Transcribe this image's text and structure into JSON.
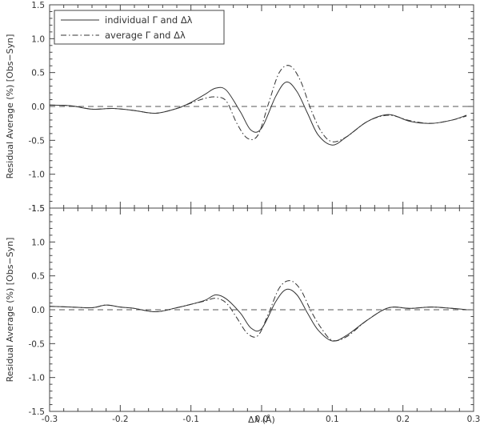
{
  "chart_data": [
    {
      "type": "line",
      "panel": "top",
      "ylabel": "Residual Average (%) [Obs−Syn]",
      "ylim": [
        -1.5,
        1.5
      ],
      "xlim": [
        -0.3,
        0.3
      ],
      "yticks": [
        "1.5",
        "1.0",
        "0.5",
        "0.0",
        "-0.5",
        "-1.0",
        "-1.5"
      ],
      "reference_line": {
        "y": 0.0,
        "style": "dashed"
      },
      "legend": {
        "placement": "top-left",
        "entries": [
          {
            "name": "individual Γ and Δλ",
            "style": "solid"
          },
          {
            "name": "average Γ and Δλ",
            "style": "dash-dot"
          }
        ]
      },
      "series": [
        {
          "name": "individual Γ and Δλ",
          "style": "solid",
          "x": [
            -0.3,
            -0.27,
            -0.24,
            -0.21,
            -0.18,
            -0.15,
            -0.12,
            -0.1,
            -0.08,
            -0.065,
            -0.05,
            -0.03,
            -0.015,
            0.0,
            0.02,
            0.035,
            0.05,
            0.065,
            0.08,
            0.1,
            0.12,
            0.15,
            0.18,
            0.21,
            0.24,
            0.27,
            0.29
          ],
          "y": [
            0.02,
            0.01,
            -0.04,
            -0.03,
            -0.06,
            -0.1,
            -0.03,
            0.06,
            0.18,
            0.27,
            0.24,
            -0.08,
            -0.35,
            -0.32,
            0.15,
            0.36,
            0.22,
            -0.1,
            -0.42,
            -0.57,
            -0.45,
            -0.22,
            -0.12,
            -0.22,
            -0.25,
            -0.2,
            -0.13
          ]
        },
        {
          "name": "average Γ and Δλ",
          "style": "dash-dot",
          "x": [
            -0.3,
            -0.27,
            -0.24,
            -0.21,
            -0.18,
            -0.15,
            -0.12,
            -0.1,
            -0.08,
            -0.065,
            -0.05,
            -0.035,
            -0.02,
            -0.005,
            0.01,
            0.025,
            0.04,
            0.055,
            0.07,
            0.085,
            0.1,
            0.12,
            0.15,
            0.18,
            0.21,
            0.24,
            0.27,
            0.29
          ],
          "y": [
            0.02,
            0.01,
            -0.04,
            -0.03,
            -0.06,
            -0.1,
            -0.03,
            0.05,
            0.12,
            0.14,
            0.08,
            -0.25,
            -0.47,
            -0.42,
            0.05,
            0.5,
            0.6,
            0.38,
            -0.05,
            -0.38,
            -0.52,
            -0.45,
            -0.22,
            -0.13,
            -0.21,
            -0.25,
            -0.2,
            -0.14
          ]
        }
      ]
    },
    {
      "type": "line",
      "panel": "bottom",
      "xlabel": "Δλ (Å)",
      "ylabel": "Residual Average (%) [Obs−Syn]",
      "ylim": [
        -1.5,
        1.5
      ],
      "xlim": [
        -0.3,
        0.3
      ],
      "yticks": [
        "1.5",
        "1.0",
        "0.5",
        "0.0",
        "-0.5",
        "-1.0",
        "-1.5"
      ],
      "xticks": [
        "-0.3",
        "-0.2",
        "-0.1",
        "0.0",
        "0.1",
        "0.2",
        "0.3"
      ],
      "reference_line": {
        "y": 0.0,
        "style": "dashed"
      },
      "series": [
        {
          "name": "individual Γ and Δλ",
          "style": "solid",
          "x": [
            -0.3,
            -0.27,
            -0.24,
            -0.22,
            -0.2,
            -0.18,
            -0.15,
            -0.12,
            -0.1,
            -0.08,
            -0.065,
            -0.05,
            -0.03,
            -0.015,
            0.0,
            0.02,
            0.035,
            0.05,
            0.065,
            0.08,
            0.1,
            0.12,
            0.15,
            0.18,
            0.21,
            0.24,
            0.27,
            0.29
          ],
          "y": [
            0.05,
            0.04,
            0.03,
            0.07,
            0.04,
            0.02,
            -0.03,
            0.03,
            0.08,
            0.14,
            0.22,
            0.16,
            -0.05,
            -0.27,
            -0.28,
            0.12,
            0.3,
            0.22,
            -0.05,
            -0.3,
            -0.46,
            -0.38,
            -0.15,
            0.03,
            0.02,
            0.04,
            0.02,
            0.0
          ]
        },
        {
          "name": "average Γ and Δλ",
          "style": "dash-dot",
          "x": [
            -0.3,
            -0.27,
            -0.24,
            -0.22,
            -0.2,
            -0.18,
            -0.15,
            -0.12,
            -0.1,
            -0.08,
            -0.065,
            -0.05,
            -0.035,
            -0.02,
            -0.005,
            0.01,
            0.025,
            0.04,
            0.055,
            0.07,
            0.085,
            0.1,
            0.12,
            0.15,
            0.18,
            0.21,
            0.24,
            0.27,
            0.29
          ],
          "y": [
            0.05,
            0.04,
            0.03,
            0.07,
            0.04,
            0.02,
            -0.03,
            0.03,
            0.08,
            0.13,
            0.17,
            0.1,
            -0.12,
            -0.35,
            -0.38,
            -0.05,
            0.32,
            0.43,
            0.3,
            -0.02,
            -0.28,
            -0.45,
            -0.4,
            -0.15,
            0.03,
            0.02,
            0.04,
            0.02,
            0.0
          ]
        }
      ]
    }
  ]
}
